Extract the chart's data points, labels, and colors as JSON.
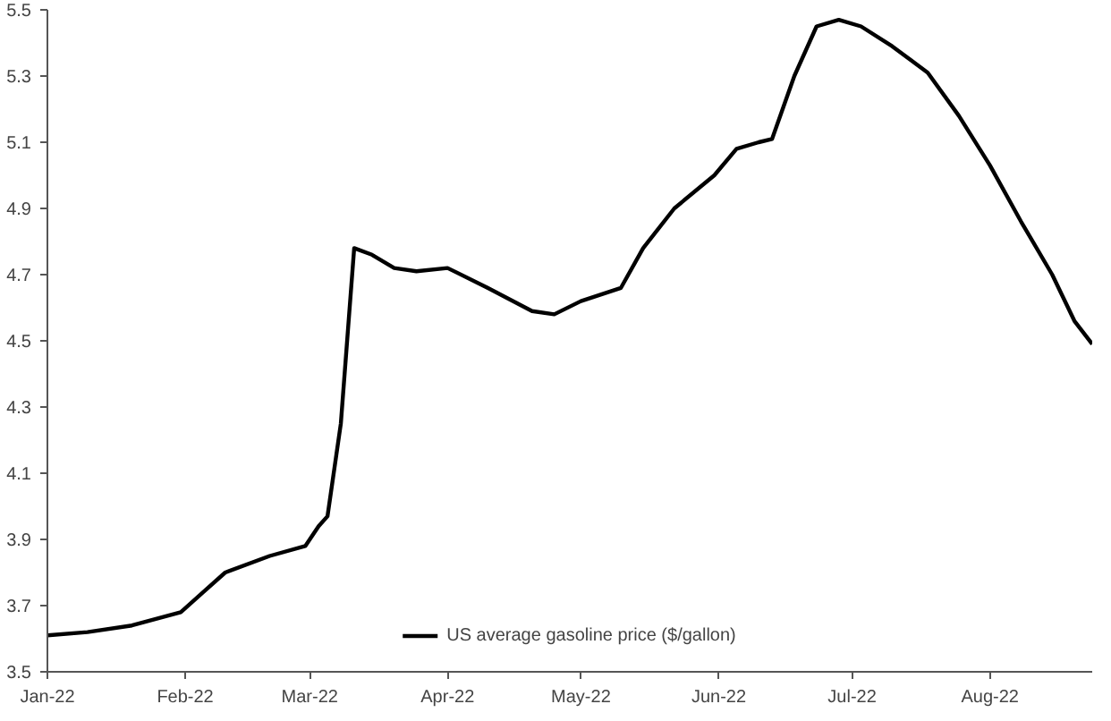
{
  "chart_data": {
    "type": "line",
    "xlim": [
      "2022-01-01",
      "2022-08-24"
    ],
    "ylim": [
      3.5,
      5.5
    ],
    "xticks": [
      {
        "value": "2022-01-01",
        "label": "Jan-22"
      },
      {
        "value": "2022-02-01",
        "label": "Feb-22"
      },
      {
        "value": "2022-03-01",
        "label": "Mar-22"
      },
      {
        "value": "2022-04-01",
        "label": "Apr-22"
      },
      {
        "value": "2022-05-01",
        "label": "May-22"
      },
      {
        "value": "2022-06-01",
        "label": "Jun-22"
      },
      {
        "value": "2022-07-01",
        "label": "Jul-22"
      },
      {
        "value": "2022-08-01",
        "label": "Aug-22"
      }
    ],
    "yticks": [
      3.5,
      3.7,
      3.9,
      4.1,
      4.3,
      4.5,
      4.7,
      4.9,
      5.1,
      5.3,
      5.5
    ],
    "grid": false,
    "legend": "bottom",
    "marker": "none",
    "line_style": "solid",
    "x": [
      "2022-01-01",
      "2022-01-10",
      "2022-01-20",
      "2022-01-31",
      "2022-02-05",
      "2022-02-10",
      "2022-02-20",
      "2022-02-28",
      "2022-03-03",
      "2022-03-05",
      "2022-03-08",
      "2022-03-11",
      "2022-03-15",
      "2022-03-20",
      "2022-03-25",
      "2022-04-01",
      "2022-04-10",
      "2022-04-20",
      "2022-04-25",
      "2022-05-01",
      "2022-05-10",
      "2022-05-15",
      "2022-05-22",
      "2022-05-31",
      "2022-06-05",
      "2022-06-10",
      "2022-06-13",
      "2022-06-18",
      "2022-06-23",
      "2022-06-28",
      "2022-07-03",
      "2022-07-10",
      "2022-07-18",
      "2022-07-25",
      "2022-08-01",
      "2022-08-08",
      "2022-08-15",
      "2022-08-20",
      "2022-08-24"
    ],
    "series": [
      {
        "name": "US average gasoline price ($/gallon)",
        "color": "#000000",
        "values": [
          3.61,
          3.62,
          3.64,
          3.68,
          3.74,
          3.8,
          3.85,
          3.88,
          3.94,
          3.97,
          4.25,
          4.78,
          4.76,
          4.72,
          4.71,
          4.72,
          4.66,
          4.59,
          4.58,
          4.62,
          4.66,
          4.78,
          4.9,
          5.0,
          5.08,
          5.1,
          5.11,
          5.3,
          5.45,
          5.47,
          5.45,
          5.39,
          5.31,
          5.18,
          5.03,
          4.86,
          4.7,
          4.56,
          4.49
        ]
      }
    ]
  }
}
